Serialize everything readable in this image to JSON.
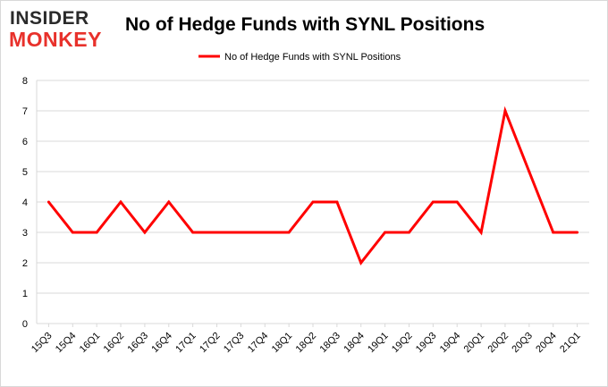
{
  "logo": {
    "line1": "INSIDER",
    "line2": "MONKEY"
  },
  "chart_data": {
    "type": "line",
    "title": "No of Hedge Funds with SYNL Positions",
    "categories": [
      "15Q3",
      "15Q4",
      "16Q1",
      "16Q2",
      "16Q3",
      "16Q4",
      "17Q1",
      "17Q2",
      "17Q3",
      "17Q4",
      "18Q1",
      "18Q2",
      "18Q3",
      "18Q4",
      "19Q1",
      "19Q2",
      "19Q3",
      "19Q4",
      "20Q1",
      "20Q2",
      "20Q3",
      "20Q4",
      "21Q1"
    ],
    "series": [
      {
        "name": "No of Hedge Funds with SYNL Positions",
        "color": "#ff0000",
        "values": [
          4,
          3,
          3,
          4,
          3,
          4,
          3,
          3,
          3,
          3,
          3,
          4,
          4,
          2,
          3,
          3,
          4,
          4,
          3,
          7,
          5,
          3,
          3
        ]
      }
    ],
    "ylim": [
      0,
      8
    ],
    "yticks": [
      0,
      1,
      2,
      3,
      4,
      5,
      6,
      7,
      8
    ],
    "grid": "horizontal",
    "legend": "top-center"
  },
  "colors": {
    "line": "#ff0000",
    "grid": "#d9d9d9",
    "logo_dark": "#2a2a2a",
    "logo_accent": "#e8312b"
  }
}
